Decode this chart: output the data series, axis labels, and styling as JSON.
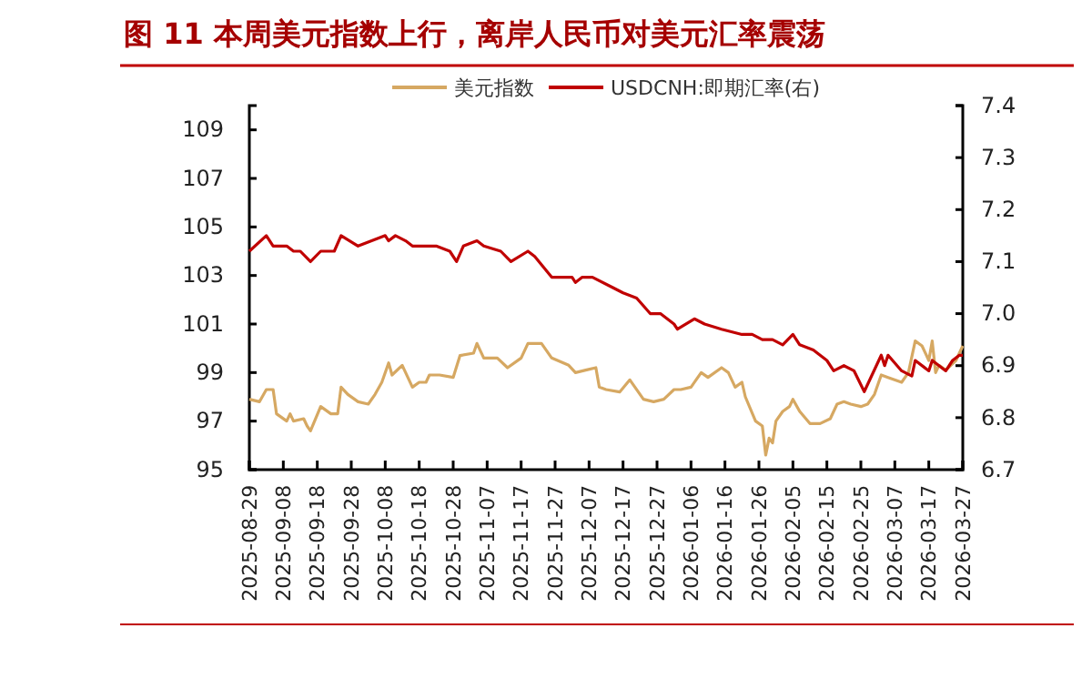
{
  "chart_data": {
    "type": "line",
    "title": "图 11 本周美元指数上行，离岸人民币对美元汇率震荡",
    "xlim": [
      "2025-08-29",
      "2026-03-27"
    ],
    "xticks": [
      "2025-08-29",
      "2025-09-08",
      "2025-09-18",
      "2025-09-28",
      "2025-10-08",
      "2025-10-18",
      "2025-10-28",
      "2025-11-07",
      "2025-11-17",
      "2025-11-27",
      "2025-12-07",
      "2025-12-17",
      "2025-12-27",
      "2026-01-06",
      "2026-01-16",
      "2026-01-26",
      "2026-02-05",
      "2026-02-15",
      "2026-02-25",
      "2026-03-07",
      "2026-03-17",
      "2026-03-27"
    ],
    "ylim": [
      95,
      110
    ],
    "yticks": [
      95,
      97,
      99,
      101,
      103,
      105,
      107,
      109
    ],
    "y2lim": [
      6.7,
      7.4
    ],
    "y2ticks": [
      6.7,
      6.8,
      6.9,
      {
        "value": 7,
        "label": "7.0"
      },
      7.1,
      7.2,
      7.3,
      7.4
    ],
    "grid": false,
    "legend": "top",
    "marker": "none",
    "line_style": "solid",
    "series": [
      {
        "name": "美元指数",
        "color": "#d6a862",
        "x": [
          "2025-08-29",
          "2025-09-01",
          "2025-09-03",
          "2025-09-05",
          "2025-09-06",
          "2025-09-09",
          "2025-09-10",
          "2025-09-11",
          "2025-09-14",
          "2025-09-15",
          "2025-09-16",
          "2025-09-19",
          "2025-09-22",
          "2025-09-24",
          "2025-09-25",
          "2025-09-27",
          "2025-09-30",
          "2025-10-03",
          "2025-10-05",
          "2025-10-07",
          "2025-10-09",
          "2025-10-10",
          "2025-10-13",
          "2025-10-16",
          "2025-10-18",
          "2025-10-20",
          "2025-10-21",
          "2025-10-24",
          "2025-10-28",
          "2025-10-30",
          "2025-11-03",
          "2025-11-04",
          "2025-11-06",
          "2025-11-10",
          "2025-11-13",
          "2025-11-17",
          "2025-11-19",
          "2025-11-23",
          "2025-11-26",
          "2025-12-01",
          "2025-12-03",
          "2025-12-06",
          "2025-12-09",
          "2025-12-10",
          "2025-12-12",
          "2025-12-16",
          "2025-12-19",
          "2025-12-23",
          "2025-12-26",
          "2025-12-29",
          "2026-01-01",
          "2026-01-03",
          "2026-01-06",
          "2026-01-09",
          "2026-01-11",
          "2026-01-15",
          "2026-01-17",
          "2026-01-19",
          "2026-01-21",
          "2026-01-22",
          "2026-01-25",
          "2026-01-27",
          "2026-01-28",
          "2026-01-29",
          "2026-01-30",
          "2026-01-31",
          "2026-02-02",
          "2026-02-04",
          "2026-02-05",
          "2026-02-07",
          "2026-02-10",
          "2026-02-13",
          "2026-02-16",
          "2026-02-18",
          "2026-02-20",
          "2026-02-22",
          "2026-02-25",
          "2026-02-27",
          "2026-03-01",
          "2026-03-03",
          "2026-03-05",
          "2026-03-09",
          "2026-03-11",
          "2026-03-13",
          "2026-03-15",
          "2026-03-17",
          "2026-03-18",
          "2026-03-19",
          "2026-03-20",
          "2026-03-22",
          "2026-03-25",
          "2026-03-27"
        ],
        "values": [
          97.9,
          97.8,
          98.3,
          98.3,
          97.3,
          97.0,
          97.3,
          97.0,
          97.1,
          96.8,
          96.6,
          97.6,
          97.3,
          97.3,
          98.4,
          98.1,
          97.8,
          97.7,
          98.1,
          98.6,
          99.4,
          98.9,
          99.3,
          98.4,
          98.6,
          98.6,
          98.9,
          98.9,
          98.8,
          99.7,
          99.8,
          100.2,
          99.6,
          99.6,
          99.2,
          99.6,
          100.2,
          100.2,
          99.6,
          99.3,
          99.0,
          99.1,
          99.2,
          98.4,
          98.3,
          98.2,
          98.7,
          97.9,
          97.8,
          97.9,
          98.3,
          98.3,
          98.4,
          99.0,
          98.8,
          99.2,
          99.0,
          98.4,
          98.6,
          98.0,
          97.0,
          96.8,
          95.6,
          96.3,
          96.1,
          97.0,
          97.4,
          97.6,
          97.9,
          97.4,
          96.9,
          96.9,
          97.1,
          97.7,
          97.8,
          97.7,
          97.6,
          97.7,
          98.1,
          98.9,
          98.8,
          98.6,
          99.0,
          100.3,
          100.1,
          99.5,
          100.3,
          99.0,
          99.3,
          99.1,
          99.5,
          100.1
        ]
      },
      {
        "name": "USDCNH:即期汇率(右)",
        "color": "#c00000",
        "axis": "y2",
        "x": [
          "2025-08-29",
          "2025-09-03",
          "2025-09-05",
          "2025-09-09",
          "2025-09-11",
          "2025-09-13",
          "2025-09-16",
          "2025-09-19",
          "2025-09-23",
          "2025-09-25",
          "2025-09-30",
          "2025-10-04",
          "2025-10-08",
          "2025-10-09",
          "2025-10-11",
          "2025-10-14",
          "2025-10-16",
          "2025-10-23",
          "2025-10-27",
          "2025-10-29",
          "2025-10-31",
          "2025-11-04",
          "2025-11-06",
          "2025-11-11",
          "2025-11-14",
          "2025-11-19",
          "2025-11-21",
          "2025-11-26",
          "2025-12-02",
          "2025-12-03",
          "2025-12-05",
          "2025-12-08",
          "2025-12-14",
          "2025-12-17",
          "2025-12-21",
          "2025-12-25",
          "2025-12-28",
          "2026-01-01",
          "2026-01-02",
          "2026-01-07",
          "2026-01-10",
          "2026-01-15",
          "2026-01-21",
          "2026-01-22",
          "2026-01-24",
          "2026-01-27",
          "2026-01-30",
          "2026-02-02",
          "2026-02-05",
          "2026-02-07",
          "2026-02-11",
          "2026-02-15",
          "2026-02-17",
          "2026-02-20",
          "2026-02-23",
          "2026-02-26",
          "2026-03-03",
          "2026-03-04",
          "2026-03-05",
          "2026-03-09",
          "2026-03-12",
          "2026-03-13",
          "2026-03-17",
          "2026-03-18",
          "2026-03-20",
          "2026-03-22",
          "2026-03-24",
          "2026-03-26",
          "2026-03-27"
        ],
        "values": [
          7.12,
          7.15,
          7.13,
          7.13,
          7.12,
          7.12,
          7.1,
          7.12,
          7.12,
          7.15,
          7.13,
          7.14,
          7.15,
          7.14,
          7.15,
          7.14,
          7.13,
          7.13,
          7.12,
          7.1,
          7.13,
          7.14,
          7.13,
          7.12,
          7.1,
          7.12,
          7.11,
          7.07,
          7.07,
          7.06,
          7.07,
          7.07,
          7.05,
          7.04,
          7.03,
          7.0,
          7.0,
          6.98,
          6.97,
          6.99,
          6.98,
          6.97,
          6.96,
          6.96,
          6.96,
          6.95,
          6.95,
          6.94,
          6.96,
          6.94,
          6.93,
          6.91,
          6.89,
          6.9,
          6.89,
          6.85,
          6.92,
          6.9,
          6.92,
          6.89,
          6.88,
          6.91,
          6.89,
          6.91,
          6.9,
          6.89,
          6.91,
          6.92,
          6.92
        ]
      }
    ]
  }
}
